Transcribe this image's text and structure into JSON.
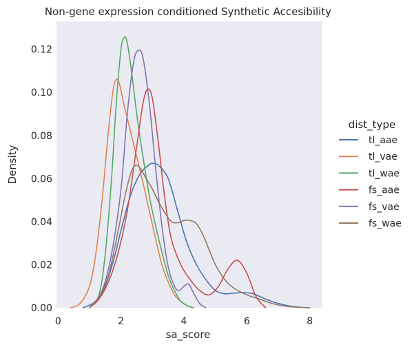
{
  "chart_data": {
    "type": "line",
    "title": "Non-gene expression conditioned Synthetic Accesibility",
    "xlabel": "sa_score",
    "ylabel": "Density",
    "xlim": [
      -0.05,
      8.4
    ],
    "ylim": [
      0,
      0.133
    ],
    "xticks": [
      0,
      2,
      4,
      6,
      8
    ],
    "yticks": [
      0.0,
      0.02,
      0.04,
      0.06,
      0.08,
      0.1,
      0.12
    ],
    "xtick_labels": [
      "0",
      "2",
      "4",
      "6",
      "8"
    ],
    "ytick_labels": [
      "0.00",
      "0.02",
      "0.04",
      "0.06",
      "0.08",
      "0.10",
      "0.12"
    ],
    "grid": false,
    "legend_title": "dist_type",
    "legend_position": "right",
    "background": "#eaeaf2",
    "series": [
      {
        "name": "tl_aae",
        "color": "#4c72b0",
        "x": [
          0.8,
          1.2,
          1.5,
          1.8,
          2.0,
          2.3,
          2.6,
          2.9,
          3.05,
          3.2,
          3.5,
          3.8,
          4.1,
          4.4,
          4.7,
          5.0,
          5.3,
          5.6,
          5.9,
          6.2,
          6.6,
          7.0,
          7.5,
          8.0
        ],
        "y": [
          0.0,
          0.003,
          0.01,
          0.024,
          0.036,
          0.052,
          0.062,
          0.0665,
          0.067,
          0.066,
          0.06,
          0.045,
          0.03,
          0.02,
          0.013,
          0.008,
          0.0065,
          0.0068,
          0.007,
          0.0065,
          0.004,
          0.002,
          0.0005,
          0.0
        ]
      },
      {
        "name": "tl_vae",
        "color": "#dd8452",
        "x": [
          0.4,
          0.7,
          1.0,
          1.2,
          1.4,
          1.6,
          1.75,
          1.85,
          1.95,
          2.1,
          2.3,
          2.5,
          2.7,
          2.9,
          3.1,
          3.3,
          3.5,
          3.7,
          3.9,
          4.1,
          4.3
        ],
        "y": [
          0.0,
          0.002,
          0.01,
          0.025,
          0.05,
          0.082,
          0.101,
          0.106,
          0.104,
          0.094,
          0.082,
          0.07,
          0.058,
          0.045,
          0.032,
          0.02,
          0.012,
          0.006,
          0.003,
          0.001,
          0.0
        ]
      },
      {
        "name": "tl_wae",
        "color": "#55a868",
        "x": [
          1.0,
          1.3,
          1.5,
          1.7,
          1.85,
          2.0,
          2.1,
          2.2,
          2.35,
          2.5,
          2.7,
          2.9,
          3.1,
          3.3,
          3.5,
          3.7,
          3.9,
          4.1,
          4.3
        ],
        "y": [
          0.0,
          0.006,
          0.025,
          0.06,
          0.095,
          0.12,
          0.1255,
          0.123,
          0.108,
          0.09,
          0.07,
          0.052,
          0.038,
          0.026,
          0.015,
          0.008,
          0.003,
          0.001,
          0.0
        ]
      },
      {
        "name": "fs_aae",
        "color": "#c44e52",
        "x": [
          1.0,
          1.3,
          1.6,
          1.9,
          2.2,
          2.5,
          2.7,
          2.85,
          3.0,
          3.2,
          3.4,
          3.6,
          3.9,
          4.2,
          4.5,
          4.8,
          5.1,
          5.4,
          5.7,
          6.0,
          6.3,
          6.6
        ],
        "y": [
          0.0,
          0.004,
          0.012,
          0.025,
          0.045,
          0.075,
          0.095,
          0.1015,
          0.097,
          0.075,
          0.05,
          0.032,
          0.02,
          0.013,
          0.008,
          0.006,
          0.01,
          0.018,
          0.022,
          0.016,
          0.005,
          0.0
        ]
      },
      {
        "name": "fs_vae",
        "color": "#8172b3",
        "x": [
          1.0,
          1.4,
          1.7,
          2.0,
          2.2,
          2.4,
          2.55,
          2.7,
          2.9,
          3.1,
          3.3,
          3.5,
          3.7,
          3.85,
          4.0,
          4.15,
          4.3,
          4.5,
          4.7
        ],
        "y": [
          0.0,
          0.008,
          0.025,
          0.055,
          0.09,
          0.114,
          0.1195,
          0.116,
          0.095,
          0.065,
          0.038,
          0.019,
          0.01,
          0.008,
          0.01,
          0.011,
          0.007,
          0.002,
          0.0
        ]
      },
      {
        "name": "fs_wae",
        "color": "#937860",
        "x": [
          1.0,
          1.3,
          1.6,
          1.9,
          2.1,
          2.3,
          2.45,
          2.6,
          2.8,
          3.0,
          3.2,
          3.4,
          3.6,
          3.8,
          4.0,
          4.2,
          4.4,
          4.6,
          4.8,
          5.0,
          5.3,
          5.6,
          6.0,
          6.4,
          6.8,
          7.2,
          7.6,
          8.0
        ],
        "y": [
          0.0,
          0.005,
          0.015,
          0.035,
          0.05,
          0.062,
          0.066,
          0.065,
          0.06,
          0.055,
          0.049,
          0.044,
          0.04,
          0.0395,
          0.0405,
          0.0405,
          0.039,
          0.034,
          0.027,
          0.02,
          0.013,
          0.009,
          0.006,
          0.004,
          0.002,
          0.0008,
          0.0002,
          0.0
        ]
      }
    ]
  }
}
